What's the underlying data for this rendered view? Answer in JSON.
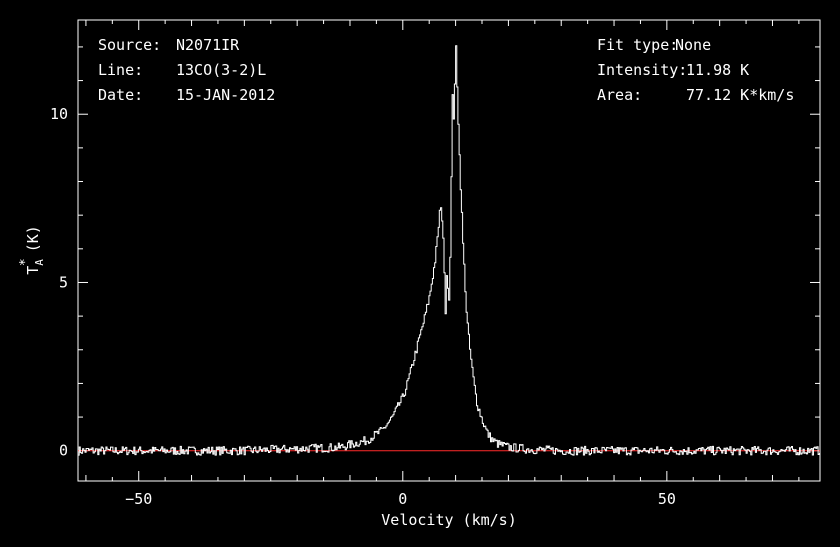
{
  "header": {
    "source_label": "Source:",
    "source_value": "N2071IR",
    "line_label": "Line:",
    "line_value": "13CO(3-2)L",
    "date_label": "Date:",
    "date_value": "15-JAN-2012",
    "fit_label": "Fit type:",
    "fit_value": "None",
    "intensity_label": "Intensity:",
    "intensity_value": "11.98 K",
    "area_label": "Area:",
    "area_value": "77.12 K*km/s"
  },
  "colors": {
    "background": "#000000",
    "foreground": "#ffffff",
    "baseline": "#ff2a2a"
  },
  "chart_data": {
    "type": "line",
    "xlabel": "Velocity (km/s)",
    "ylabel_main": "T",
    "ylabel_sup": "*",
    "ylabel_sub": "A",
    "ylabel_unit": "(K)",
    "xlim": [
      -61.5,
      79
    ],
    "ylim": [
      -0.9,
      12.8
    ],
    "xticks": [
      -50,
      0,
      50
    ],
    "xtick_labels": [
      "−50",
      "0",
      "50"
    ],
    "yticks": [
      0,
      5,
      10
    ],
    "ytick_labels": [
      "0",
      "5",
      "10"
    ],
    "grid": false,
    "baseline": 0,
    "series": [
      {
        "style": "histogram",
        "x": [
          -61,
          -30,
          -12,
          -7,
          -4,
          -2,
          0,
          1,
          2,
          3,
          4,
          5,
          6,
          6.5,
          7,
          7.5,
          8,
          8.3,
          8.6,
          9,
          9.3,
          9.6,
          10,
          10.3,
          10.6,
          11,
          11.3,
          11.7,
          12,
          12.5,
          13,
          13.5,
          14,
          15,
          16,
          17,
          18,
          20,
          24,
          30,
          50,
          79
        ],
        "y": [
          0,
          0,
          0.1,
          0.3,
          0.6,
          1.0,
          1.6,
          2.1,
          2.7,
          3.3,
          3.9,
          4.6,
          5.6,
          6.3,
          7.25,
          6.8,
          4.1,
          5.6,
          4.2,
          6.2,
          10.8,
          9.8,
          11.98,
          10.5,
          9.0,
          7.4,
          6.2,
          5.0,
          4.1,
          3.2,
          2.5,
          1.9,
          1.4,
          0.9,
          0.5,
          0.3,
          0.2,
          0.1,
          0.04,
          0,
          0,
          0
        ]
      }
    ]
  }
}
